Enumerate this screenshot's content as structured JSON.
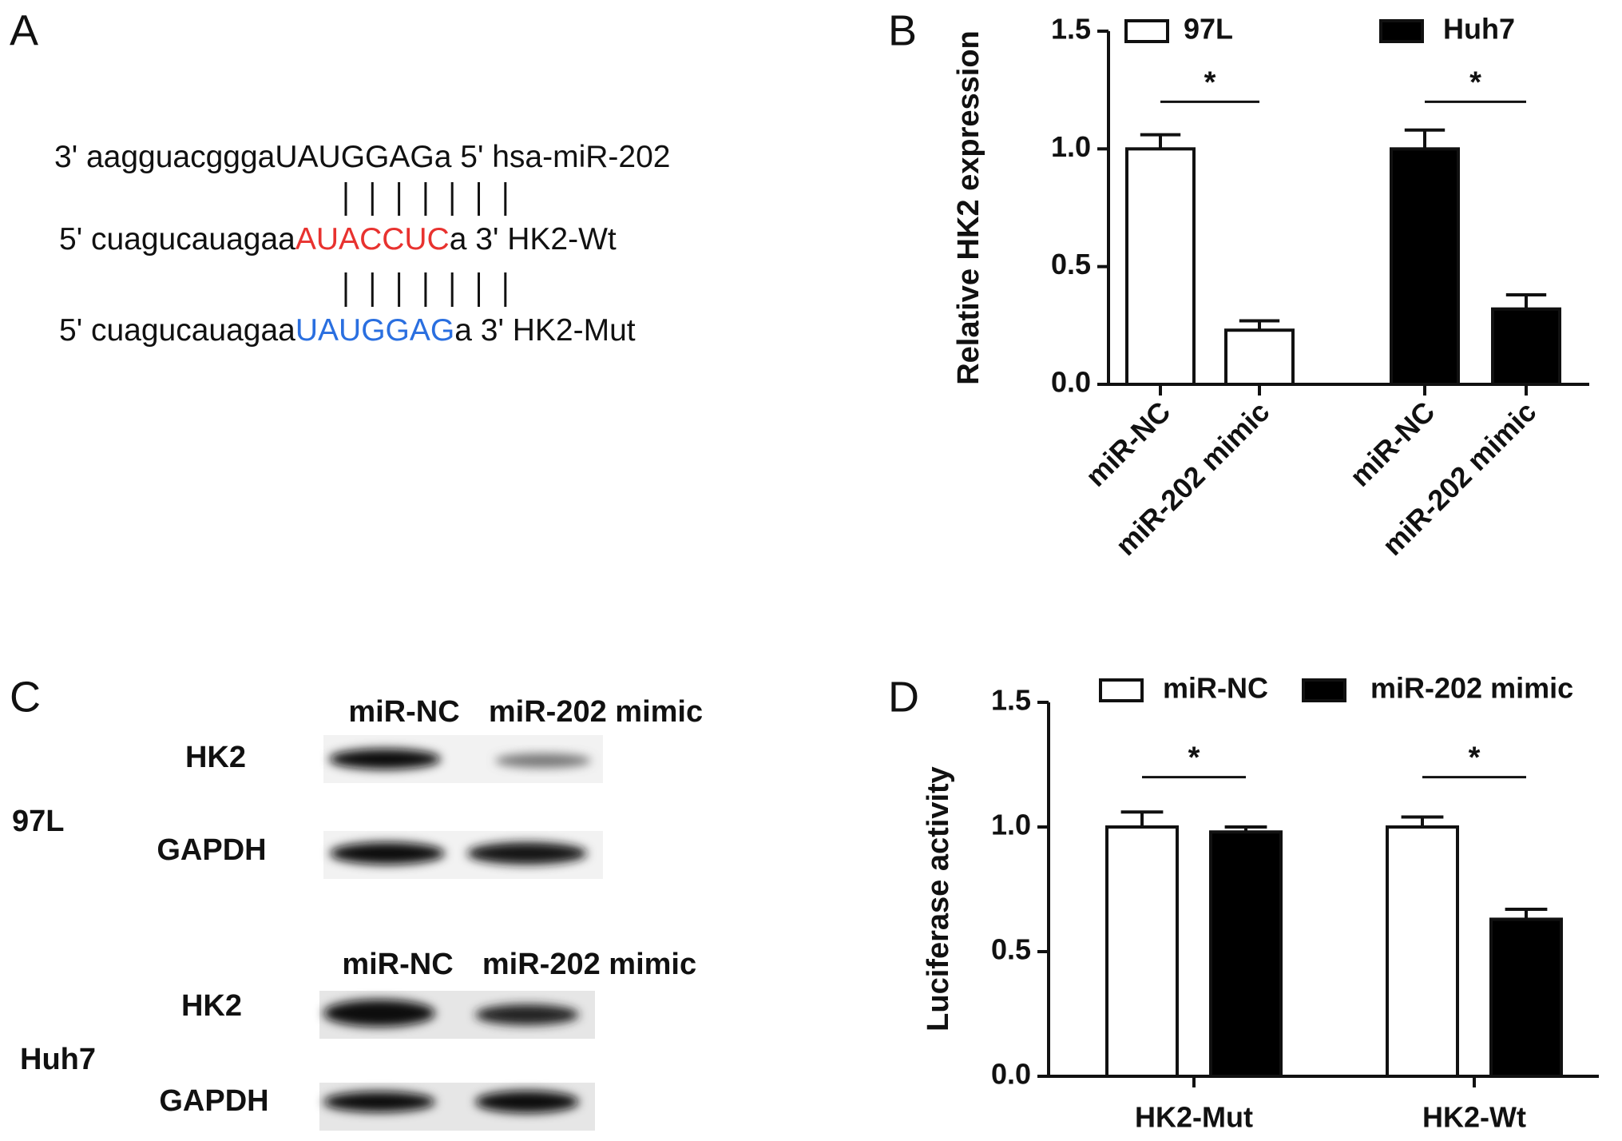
{
  "panel_labels": [
    "A",
    "B",
    "C",
    "D"
  ],
  "sequence_panel": {
    "rows": [
      {
        "prefix": "3' aagguacggga",
        "motif": "UAUGGAG",
        "suffix": "a 5' hsa-miR-202",
        "motif_color": "#111111"
      },
      {
        "prefix": "5' cuagucauagaa",
        "motif": "AUACCUC",
        "suffix": "a 3' HK2-Wt",
        "motif_color": "#e8322f"
      },
      {
        "prefix": "5' cuagucauagaa",
        "motif": "UAUGGAG",
        "suffix": "a 3' HK2-Mut",
        "motif_color": "#2a6fe0"
      }
    ]
  },
  "blot_panel": {
    "groups": [
      {
        "cell_line": "97L",
        "lanes": [
          "miR-NC",
          "miR-202 mimic"
        ],
        "bands": [
          "HK2",
          "GAPDH"
        ]
      },
      {
        "cell_line": "Huh7",
        "lanes": [
          "miR-NC",
          "miR-202 mimic"
        ],
        "bands": [
          "HK2",
          "GAPDH"
        ]
      }
    ]
  },
  "chart_data": [
    {
      "type": "bar",
      "y_label": "Relative HK2 expression",
      "categories": [
        "miR-NC",
        "miR-202 mimic",
        "miR-NC",
        "miR-202 mimic"
      ],
      "series": [
        {
          "name": "97L",
          "color": "#ffffff",
          "values": [
            1.0,
            0.23,
            null,
            null
          ],
          "errors": [
            0.06,
            0.04,
            null,
            null
          ]
        },
        {
          "name": "Huh7",
          "color": "#000000",
          "values": [
            null,
            null,
            1.0,
            0.32
          ],
          "errors": [
            null,
            null,
            0.08,
            0.06
          ]
        }
      ],
      "ylim": [
        0,
        1.5
      ],
      "yticks": [
        {
          "value": 0,
          "label": "0.0"
        },
        {
          "value": 0.5,
          "label": "0.5"
        },
        {
          "value": 1.0,
          "label": "1.0"
        },
        {
          "value": 1.5,
          "label": "1.5"
        }
      ],
      "annotations": [
        "*",
        "*"
      ],
      "legend": "top"
    },
    {
      "type": "bar",
      "y_label": "Luciferase activity",
      "categories": [
        "HK2-Mut",
        "HK2-Wt"
      ],
      "series": [
        {
          "name": "miR-NC",
          "color": "#ffffff",
          "values": [
            1.0,
            1.0
          ],
          "errors": [
            0.06,
            0.04
          ]
        },
        {
          "name": "miR-202 mimic",
          "color": "#000000",
          "values": [
            0.98,
            0.63
          ],
          "errors": [
            0.02,
            0.04
          ]
        }
      ],
      "ylim": [
        0,
        1.5
      ],
      "yticks": [
        {
          "value": 0,
          "label": "0.0"
        },
        {
          "value": 0.5,
          "label": "0.5"
        },
        {
          "value": 1.0,
          "label": "1.0"
        },
        {
          "value": 1.5,
          "label": "1.5"
        }
      ],
      "annotations": [
        "*",
        "*"
      ],
      "legend": "top"
    }
  ]
}
